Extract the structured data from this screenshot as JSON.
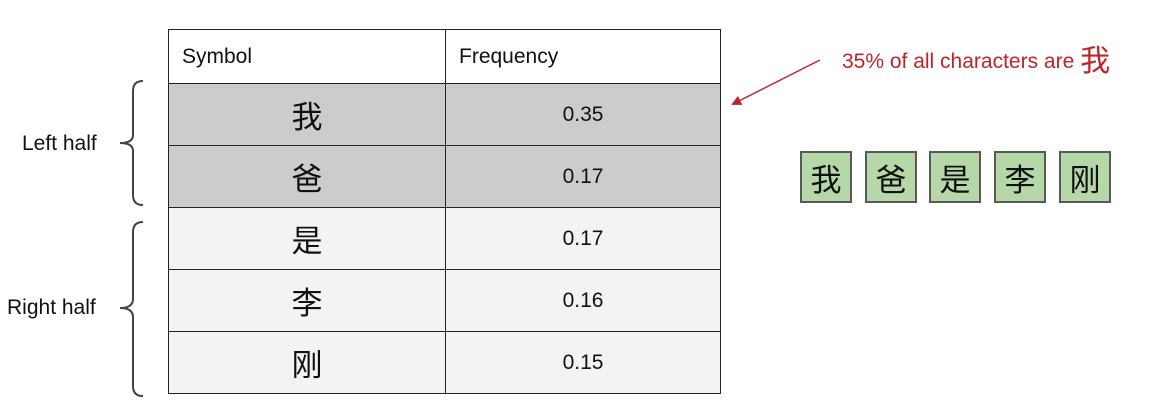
{
  "table": {
    "headers": {
      "symbol": "Symbol",
      "frequency": "Frequency"
    },
    "rows": [
      {
        "symbol": "我",
        "frequency": "0.35",
        "group": "left"
      },
      {
        "symbol": "爸",
        "frequency": "0.17",
        "group": "left"
      },
      {
        "symbol": "是",
        "frequency": "0.17",
        "group": "right"
      },
      {
        "symbol": "李",
        "frequency": "0.16",
        "group": "right"
      },
      {
        "symbol": "刚",
        "frequency": "0.15",
        "group": "right"
      }
    ]
  },
  "labels": {
    "left_half": "Left half",
    "right_half": "Right half"
  },
  "callout": {
    "text": "35% of all characters are ",
    "char": "我",
    "color": "#c0242b"
  },
  "sequence": [
    "我",
    "爸",
    "是",
    "李",
    "刚"
  ],
  "colors": {
    "left_fill": "#cccccc",
    "right_fill": "#f3f3f3",
    "box_fill": "#b6d7a8",
    "box_border": "#595959"
  }
}
